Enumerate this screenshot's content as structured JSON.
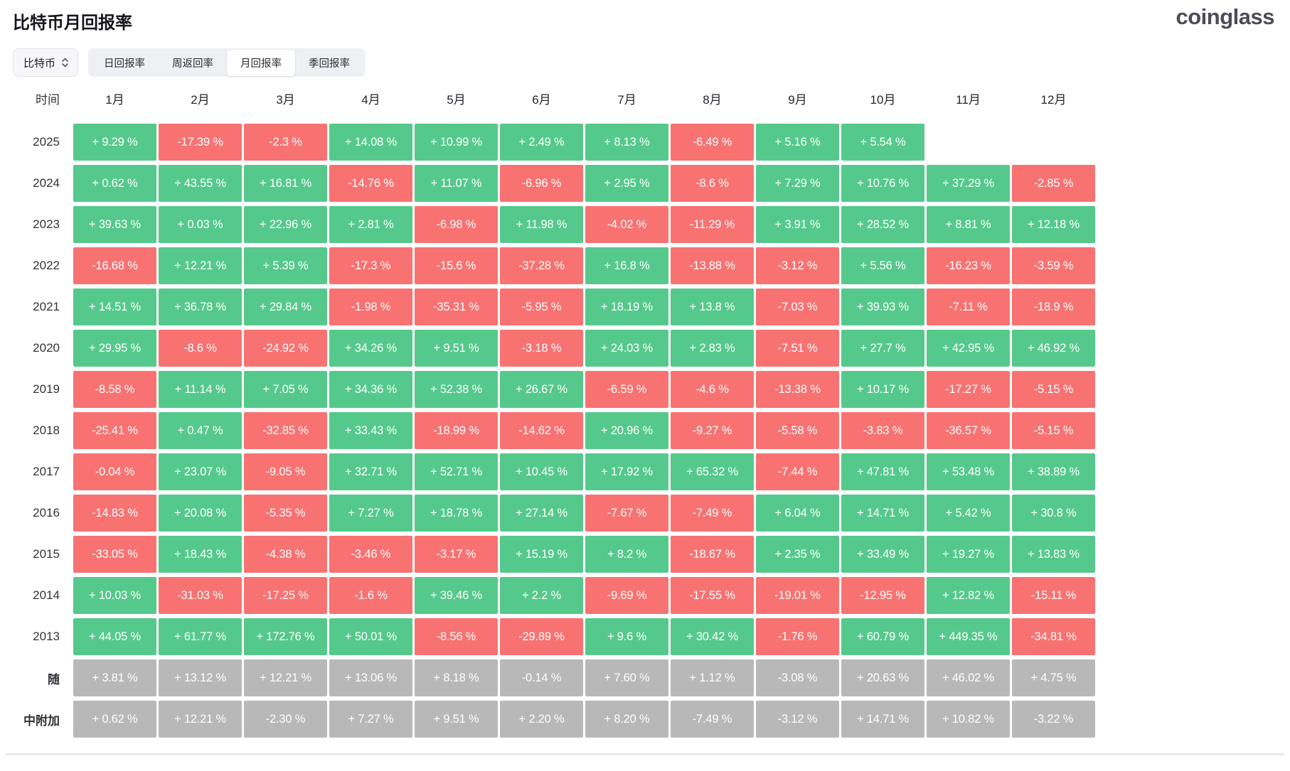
{
  "header": {
    "title": "比特币月回报率",
    "brand": "coinglass"
  },
  "controls": {
    "coin_selector": {
      "label": "比特币"
    },
    "tabs": [
      {
        "name": "daily",
        "label": "日回报率",
        "active": false
      },
      {
        "name": "weekly",
        "label": "周返回率",
        "active": false
      },
      {
        "name": "monthly",
        "label": "月回报率",
        "active": true
      },
      {
        "name": "quarterly",
        "label": "季回报率",
        "active": false
      }
    ]
  },
  "colors": {
    "positive": "#55c98c",
    "negative": "#f87272",
    "summary": "#b8b8b8",
    "cell_text": "#ffffff"
  },
  "chart_data": {
    "type": "heatmap",
    "columns": [
      "时间",
      "1月",
      "2月",
      "3月",
      "4月",
      "5月",
      "6月",
      "7月",
      "8月",
      "9月",
      "10月",
      "11月",
      "12月"
    ],
    "rows": [
      {
        "label": "2025",
        "type": "year",
        "cells": [
          "+ 9.29 %",
          "-17.39 %",
          "-2.3 %",
          "+ 14.08 %",
          "+ 10.99 %",
          "+ 2.49 %",
          "+ 8.13 %",
          "-6.49 %",
          "+ 5.16 %",
          "+ 5.54 %",
          "",
          ""
        ]
      },
      {
        "label": "2024",
        "type": "year",
        "cells": [
          "+ 0.62 %",
          "+ 43.55 %",
          "+ 16.81 %",
          "-14.76 %",
          "+ 11.07 %",
          "-6.96 %",
          "+ 2.95 %",
          "-8.6 %",
          "+ 7.29 %",
          "+ 10.76 %",
          "+ 37.29 %",
          "-2.85 %"
        ]
      },
      {
        "label": "2023",
        "type": "year",
        "cells": [
          "+ 39.63 %",
          "+ 0.03 %",
          "+ 22.96 %",
          "+ 2.81 %",
          "-6.98 %",
          "+ 11.98 %",
          "-4.02 %",
          "-11.29 %",
          "+ 3.91 %",
          "+ 28.52 %",
          "+ 8.81 %",
          "+ 12.18 %"
        ]
      },
      {
        "label": "2022",
        "type": "year",
        "cells": [
          "-16.68 %",
          "+ 12.21 %",
          "+ 5.39 %",
          "-17.3 %",
          "-15.6 %",
          "-37.28 %",
          "+ 16.8 %",
          "-13.88 %",
          "-3.12 %",
          "+ 5.56 %",
          "-16.23 %",
          "-3.59 %"
        ]
      },
      {
        "label": "2021",
        "type": "year",
        "cells": [
          "+ 14.51 %",
          "+ 36.78 %",
          "+ 29.84 %",
          "-1.98 %",
          "-35.31 %",
          "-5.95 %",
          "+ 18.19 %",
          "+ 13.8 %",
          "-7.03 %",
          "+ 39.93 %",
          "-7.11 %",
          "-18.9 %"
        ]
      },
      {
        "label": "2020",
        "type": "year",
        "cells": [
          "+ 29.95 %",
          "-8.6 %",
          "-24.92 %",
          "+ 34.26 %",
          "+ 9.51 %",
          "-3.18 %",
          "+ 24.03 %",
          "+ 2.83 %",
          "-7.51 %",
          "+ 27.7 %",
          "+ 42.95 %",
          "+ 46.92 %"
        ]
      },
      {
        "label": "2019",
        "type": "year",
        "cells": [
          "-8.58 %",
          "+ 11.14 %",
          "+ 7.05 %",
          "+ 34.36 %",
          "+ 52.38 %",
          "+ 26.67 %",
          "-6.59 %",
          "-4.6 %",
          "-13.38 %",
          "+ 10.17 %",
          "-17.27 %",
          "-5.15 %"
        ]
      },
      {
        "label": "2018",
        "type": "year",
        "cells": [
          "-25.41 %",
          "+ 0.47 %",
          "-32.85 %",
          "+ 33.43 %",
          "-18.99 %",
          "-14.62 %",
          "+ 20.96 %",
          "-9.27 %",
          "-5.58 %",
          "-3.83 %",
          "-36.57 %",
          "-5.15 %"
        ]
      },
      {
        "label": "2017",
        "type": "year",
        "cells": [
          "-0.04 %",
          "+ 23.07 %",
          "-9.05 %",
          "+ 32.71 %",
          "+ 52.71 %",
          "+ 10.45 %",
          "+ 17.92 %",
          "+ 65.32 %",
          "-7.44 %",
          "+ 47.81 %",
          "+ 53.48 %",
          "+ 38.89 %"
        ]
      },
      {
        "label": "2016",
        "type": "year",
        "cells": [
          "-14.83 %",
          "+ 20.08 %",
          "-5.35 %",
          "+ 7.27 %",
          "+ 18.78 %",
          "+ 27.14 %",
          "-7.67 %",
          "-7.49 %",
          "+ 6.04 %",
          "+ 14.71 %",
          "+ 5.42 %",
          "+ 30.8 %"
        ]
      },
      {
        "label": "2015",
        "type": "year",
        "cells": [
          "-33.05 %",
          "+ 18.43 %",
          "-4.38 %",
          "-3.46 %",
          "-3.17 %",
          "+ 15.19 %",
          "+ 8.2 %",
          "-18.67 %",
          "+ 2.35 %",
          "+ 33.49 %",
          "+ 19.27 %",
          "+ 13.83 %"
        ]
      },
      {
        "label": "2014",
        "type": "year",
        "cells": [
          "+ 10.03 %",
          "-31.03 %",
          "-17.25 %",
          "-1.6 %",
          "+ 39.46 %",
          "+ 2.2 %",
          "-9.69 %",
          "-17.55 %",
          "-19.01 %",
          "-12.95 %",
          "+ 12.82 %",
          "-15.11 %"
        ]
      },
      {
        "label": "2013",
        "type": "year",
        "cells": [
          "+ 44.05 %",
          "+ 61.77 %",
          "+ 172.76 %",
          "+ 50.01 %",
          "-8.56 %",
          "-29.89 %",
          "+ 9.6 %",
          "+ 30.42 %",
          "-1.76 %",
          "+ 60.79 %",
          "+ 449.35 %",
          "-34.81 %"
        ]
      },
      {
        "label": "随",
        "type": "summary",
        "cells": [
          "+ 3.81 %",
          "+ 13.12 %",
          "+ 12.21 %",
          "+ 13.06 %",
          "+ 8.18 %",
          "-0.14 %",
          "+ 7.60 %",
          "+ 1.12 %",
          "-3.08 %",
          "+ 20.63 %",
          "+ 46.02 %",
          "+ 4.75 %"
        ]
      },
      {
        "label": "中附加",
        "type": "summary",
        "cells": [
          "+ 0.62 %",
          "+ 12.21 %",
          "-2.30 %",
          "+ 7.27 %",
          "+ 9.51 %",
          "+ 2.20 %",
          "+ 8.20 %",
          "-7.49 %",
          "-3.12 %",
          "+ 14.71 %",
          "+ 10.82 %",
          "-3.22 %"
        ]
      }
    ]
  }
}
